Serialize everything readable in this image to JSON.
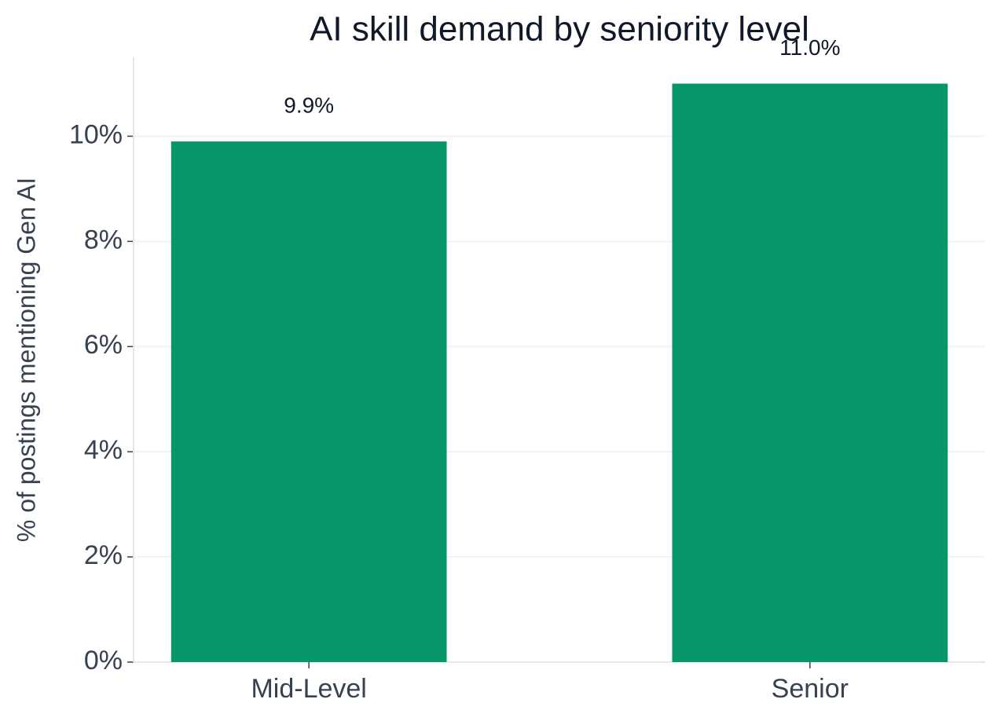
{
  "chart_data": {
    "type": "bar",
    "title": "AI skill demand by seniority level",
    "y_label": "% of postings mentioning Gen AI",
    "categories": [
      "Mid-Level",
      "Senior"
    ],
    "values": [
      9.9,
      11.0
    ],
    "value_labels": [
      "9.9%",
      "11.0%"
    ],
    "color": "#07966a",
    "ylim": [
      0,
      11.5
    ],
    "yticks": [
      {
        "value": 0,
        "label": "0%"
      },
      {
        "value": 2,
        "label": "2%"
      },
      {
        "value": 4,
        "label": "4%"
      },
      {
        "value": 6,
        "label": "6%"
      },
      {
        "value": 8,
        "label": "8%"
      },
      {
        "value": 10,
        "label": "10%"
      }
    ],
    "grid": true
  }
}
